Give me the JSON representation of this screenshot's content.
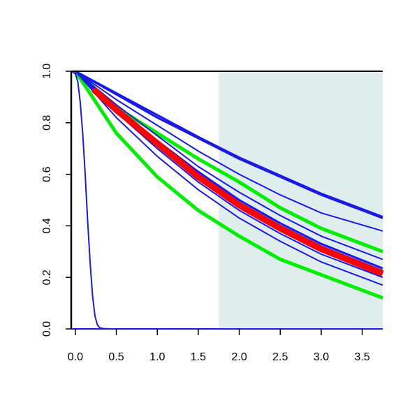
{
  "chart_data": {
    "type": "line",
    "title": "",
    "xlabel": "",
    "ylabel": "",
    "xlim": [
      -0.05,
      3.75
    ],
    "ylim": [
      0.0,
      1.0
    ],
    "x_ticks": [
      0.0,
      0.5,
      1.0,
      1.5,
      2.0,
      2.5,
      3.0,
      3.5
    ],
    "x_tick_labels": [
      "0.0",
      "0.5",
      "1.0",
      "1.5",
      "2.0",
      "2.5",
      "3.0",
      "3.5"
    ],
    "y_ticks": [
      0.0,
      0.2,
      0.4,
      0.6,
      0.8,
      1.0
    ],
    "y_tick_labels": [
      "0.0",
      "0.2",
      "0.4",
      "0.6",
      "0.8",
      "1.0"
    ],
    "grid": false,
    "legend": "none",
    "shaded_region": {
      "x_from": 1.75,
      "x_to": 3.75,
      "color": "#e0eded"
    },
    "colors": {
      "blue": "#1a1ae6",
      "red": "#ff0000",
      "green": "#00ee00"
    },
    "series": [
      {
        "color": "#00ee00",
        "width": 5,
        "x": [
          0.0,
          0.5,
          1.0,
          1.5,
          2.0,
          2.5,
          3.0,
          3.75
        ],
        "y": [
          1.0,
          0.76,
          0.59,
          0.46,
          0.36,
          0.27,
          0.21,
          0.12
        ]
      },
      {
        "color": "#00ee00",
        "width": 5,
        "x": [
          0.0,
          0.5,
          1.0,
          1.5,
          2.0,
          2.5,
          3.0,
          3.75
        ],
        "y": [
          1.0,
          0.86,
          0.76,
          0.66,
          0.57,
          0.47,
          0.39,
          0.3
        ]
      },
      {
        "color": "#1a1ae6",
        "width": 2,
        "x": [
          0.0,
          0.5,
          1.0,
          1.5,
          2.0,
          2.5,
          3.0,
          3.75
        ],
        "y": [
          1.0,
          0.82,
          0.67,
          0.54,
          0.43,
          0.34,
          0.26,
          0.17
        ]
      },
      {
        "color": "#1a1ae6",
        "width": 2,
        "x": [
          0.0,
          0.5,
          1.0,
          1.5,
          2.0,
          2.5,
          3.0,
          3.75
        ],
        "y": [
          1.0,
          0.84,
          0.7,
          0.57,
          0.46,
          0.37,
          0.29,
          0.2
        ]
      },
      {
        "color": "#1a1ae6",
        "width": 3,
        "x": [
          0.0,
          0.5,
          1.0,
          1.5,
          2.0,
          2.5,
          3.0,
          3.75
        ],
        "y": [
          1.0,
          0.85,
          0.72,
          0.6,
          0.49,
          0.4,
          0.32,
          0.225
        ]
      },
      {
        "color": "#1a1ae6",
        "width": 3,
        "x": [
          0.0,
          0.5,
          1.0,
          1.5,
          2.0,
          2.5,
          3.0,
          3.75
        ],
        "y": [
          1.0,
          0.86,
          0.73,
          0.61,
          0.5,
          0.41,
          0.33,
          0.235
        ]
      },
      {
        "color": "#1a1ae6",
        "width": 2,
        "x": [
          0.0,
          0.5,
          1.0,
          1.5,
          2.0,
          2.5,
          3.0,
          3.75
        ],
        "y": [
          1.0,
          0.87,
          0.75,
          0.63,
          0.53,
          0.44,
          0.36,
          0.27
        ]
      },
      {
        "color": "#1a1ae6",
        "width": 2,
        "x": [
          0.0,
          0.5,
          1.0,
          1.5,
          2.0,
          2.5,
          3.0,
          3.75
        ],
        "y": [
          1.0,
          0.89,
          0.79,
          0.69,
          0.6,
          0.52,
          0.45,
          0.38
        ]
      },
      {
        "color": "#1a1ae6",
        "width": 3,
        "x": [
          0.0,
          0.5,
          1.0,
          1.5,
          2.0,
          2.5,
          3.0,
          3.75
        ],
        "y": [
          1.0,
          0.91,
          0.82,
          0.74,
          0.66,
          0.59,
          0.52,
          0.43
        ]
      },
      {
        "color": "#1a1ae6",
        "width": 3,
        "x": [
          0.0,
          0.5,
          1.0,
          1.5,
          2.0,
          2.5,
          3.0,
          3.75
        ],
        "y": [
          1.0,
          0.915,
          0.83,
          0.745,
          0.665,
          0.595,
          0.525,
          0.435
        ]
      },
      {
        "color": "#ff0000",
        "width": 9,
        "x": [
          0.22,
          0.5,
          1.0,
          1.5,
          2.0,
          2.5,
          3.0,
          3.75
        ],
        "y": [
          0.93,
          0.85,
          0.72,
          0.59,
          0.48,
          0.39,
          0.31,
          0.215
        ]
      },
      {
        "color": "#1a1ae6",
        "width": 2,
        "x": [
          -0.05,
          0.0,
          0.03,
          0.06,
          0.09,
          0.12,
          0.15,
          0.18,
          0.21,
          0.24,
          0.27,
          0.3,
          0.35,
          0.45,
          1.0,
          2.0,
          3.0,
          3.75
        ],
        "y": [
          1.0,
          0.99,
          0.96,
          0.88,
          0.76,
          0.6,
          0.42,
          0.26,
          0.13,
          0.05,
          0.015,
          0.004,
          0.001,
          0.0,
          0.0,
          0.0,
          0.0,
          0.0
        ]
      }
    ]
  }
}
